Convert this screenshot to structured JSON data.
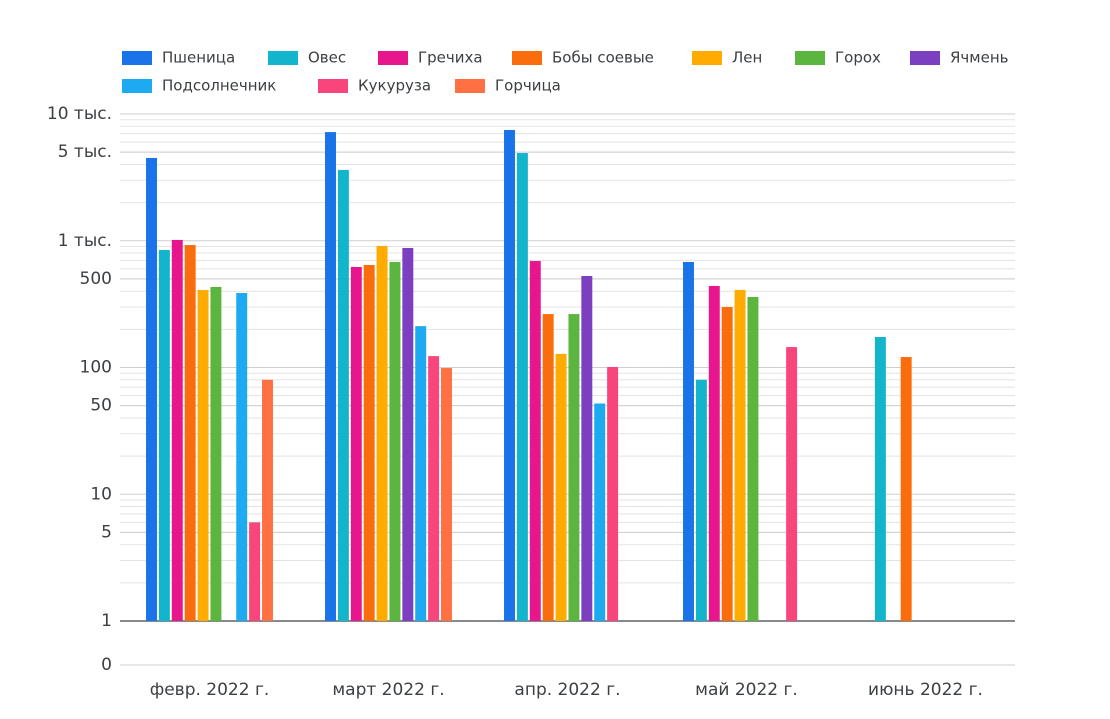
{
  "chart_data": {
    "type": "bar",
    "log_scale": true,
    "grid": true,
    "legend": "top",
    "categories": [
      "февр. 2022 г.",
      "март 2022 г.",
      "апр. 2022 г.",
      "май 2022 г.",
      "июнь 2022 г."
    ],
    "series": [
      {
        "name": "Пшеница",
        "color": "#1a73e8",
        "values": [
          4500,
          7200,
          7480,
          680,
          null
        ]
      },
      {
        "name": "Овес",
        "color": "#12b5cb",
        "values": [
          845,
          3620,
          4920,
          80,
          174
        ]
      },
      {
        "name": "Гречиха",
        "color": "#e8168c",
        "values": [
          1015,
          621,
          692,
          440,
          null
        ]
      },
      {
        "name": "Бобы соевые",
        "color": "#fa6d0c",
        "values": [
          925,
          644,
          264,
          300,
          121
        ]
      },
      {
        "name": "Лен",
        "color": "#ffab00",
        "values": [
          409,
          910,
          128,
          409,
          null
        ]
      },
      {
        "name": "Горох",
        "color": "#5bb53e",
        "values": [
          432,
          680,
          264,
          360,
          null
        ]
      },
      {
        "name": "Ячмень",
        "color": "#7b3fbf",
        "values": [
          null,
          877,
          527,
          null,
          null
        ]
      },
      {
        "name": "Подсолнечник",
        "color": "#1eaaf1",
        "values": [
          387,
          212,
          52,
          null,
          null
        ]
      },
      {
        "name": "Кукуруза",
        "color": "#f8467c",
        "values": [
          6,
          123,
          101,
          145,
          null
        ]
      },
      {
        "name": "Горчица",
        "color": "#ff7043",
        "values": [
          80,
          99,
          null,
          null,
          null
        ]
      }
    ],
    "ylim": [
      1,
      10000
    ],
    "yticks": [
      0,
      1,
      5,
      10,
      50,
      100,
      500,
      {
        "value": 1000,
        "label": "1 тыс."
      },
      {
        "value": 5000,
        "label": "5 тыс."
      },
      {
        "value": 10000,
        "label": "10 тыс."
      }
    ]
  }
}
